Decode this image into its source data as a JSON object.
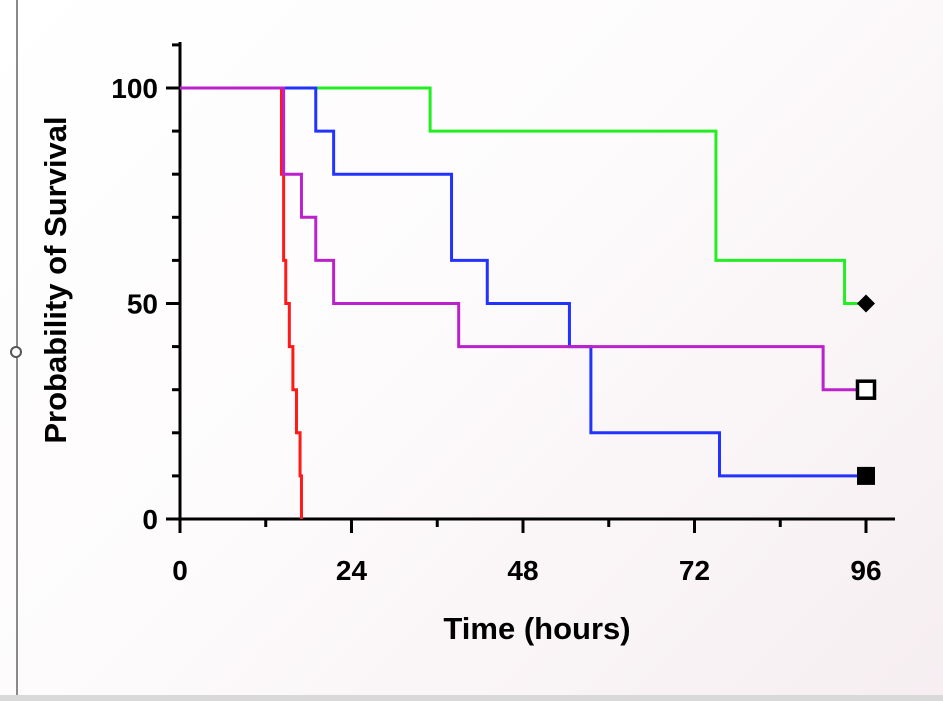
{
  "chart_data": {
    "type": "line",
    "step": true,
    "xlabel": "Time (hours)",
    "ylabel": "Probability of Survival",
    "xlim": [
      0,
      96
    ],
    "ylim": [
      0,
      100
    ],
    "xticks": [
      0,
      24,
      48,
      72,
      96
    ],
    "xtick_labels": [
      "0",
      "24",
      "48",
      "72",
      "96"
    ],
    "yticks": [
      0,
      50,
      100
    ],
    "ytick_labels": [
      "0",
      "50",
      "100"
    ],
    "grid": false,
    "legend": "none",
    "series": [
      {
        "color": "#ff1a1a",
        "marker": "none",
        "x": [
          0,
          14,
          14.2,
          14.5,
          14.8,
          15.3,
          15.8,
          16.3,
          16.8,
          17
        ],
        "y": [
          100,
          100,
          80,
          60,
          50,
          40,
          30,
          20,
          10,
          0
        ]
      },
      {
        "color": "#22ee22",
        "marker": "filled-diamond",
        "x": [
          0,
          35,
          75,
          93,
          96
        ],
        "y": [
          100,
          90,
          60,
          50,
          50
        ]
      },
      {
        "color": "#2233ff",
        "marker": "filled-square",
        "x": [
          0,
          19,
          21.5,
          38,
          43,
          54.5,
          57.5,
          75.5,
          96
        ],
        "y": [
          100,
          90,
          80,
          60,
          50,
          40,
          20,
          10,
          10
        ]
      },
      {
        "color": "#bb22cc",
        "marker": "open-square",
        "x": [
          0,
          14.5,
          17,
          19,
          21.5,
          39,
          90,
          96
        ],
        "y": [
          100,
          80,
          70,
          60,
          50,
          40,
          30,
          30
        ]
      }
    ]
  }
}
